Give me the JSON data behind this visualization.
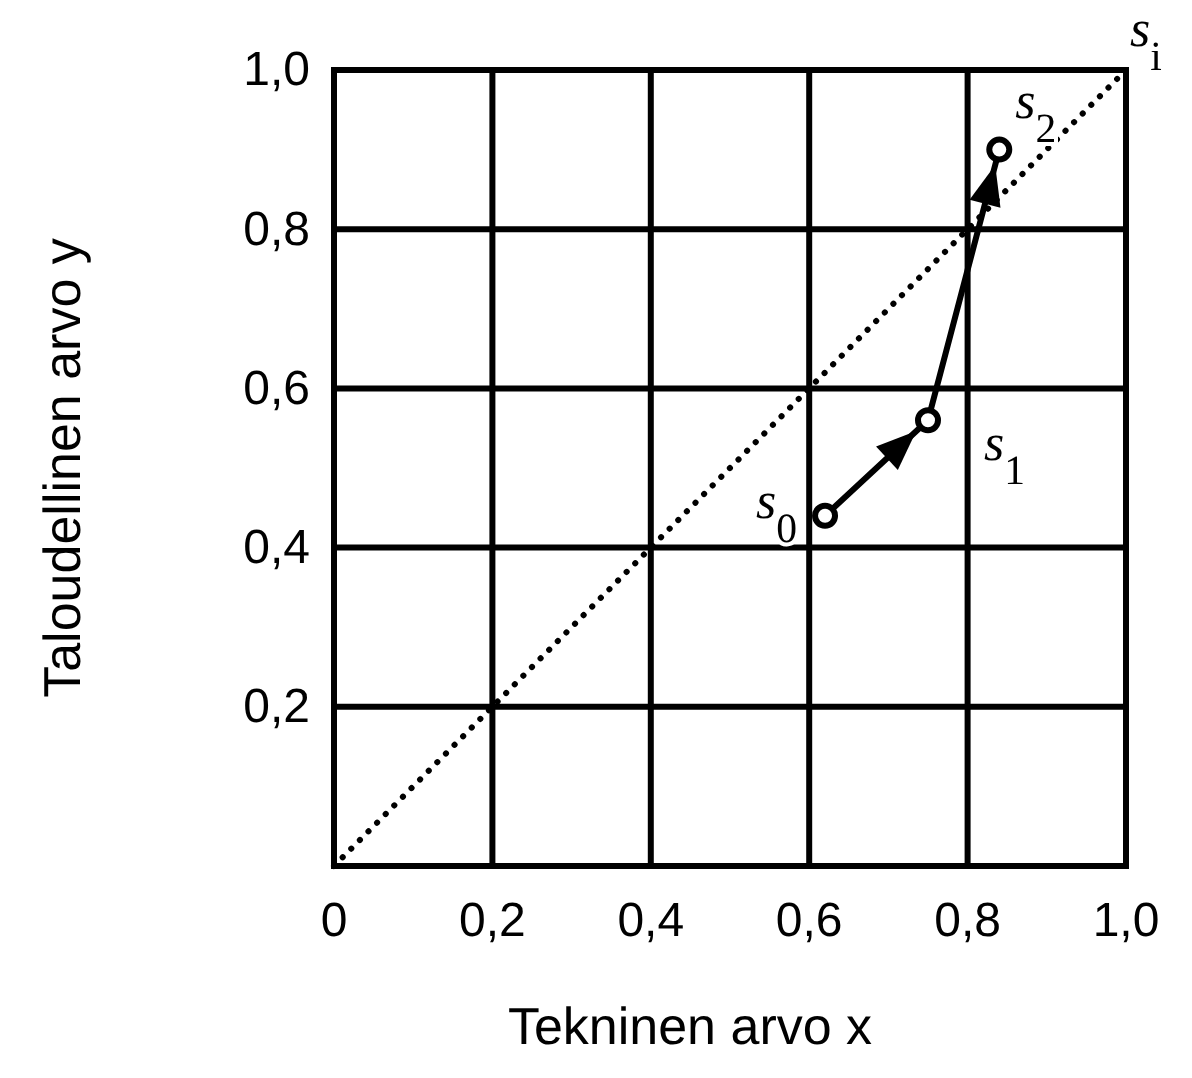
{
  "chart_data": {
    "type": "line",
    "xlabel": "Tekninen arvo x",
    "ylabel": "Taloudellinen arvo y",
    "xlim": [
      0,
      1
    ],
    "ylim": [
      0,
      1
    ],
    "xticks": [
      {
        "value": 0,
        "label": "0"
      },
      {
        "value": 0.2,
        "label": "0,2"
      },
      {
        "value": 0.4,
        "label": "0,4"
      },
      {
        "value": 0.6,
        "label": "0,6"
      },
      {
        "value": 0.8,
        "label": "0,8"
      },
      {
        "value": 1,
        "label": "1,0"
      }
    ],
    "yticks": [
      {
        "value": 0.2,
        "label": "0,2"
      },
      {
        "value": 0.4,
        "label": "0,4"
      },
      {
        "value": 0.6,
        "label": "0,6"
      },
      {
        "value": 0.8,
        "label": "0,8"
      },
      {
        "value": 1,
        "label": "1,0"
      }
    ],
    "grid": true,
    "series": [
      {
        "name": "s$_{i}$",
        "color": "#000000",
        "x": [
          0,
          1
        ],
        "values": [
          0,
          1
        ],
        "line_style": "dotted",
        "marker": "none"
      },
      {
        "color": "#000000",
        "x": [
          0.62,
          0.75,
          0.84
        ],
        "values": [
          0.44,
          0.56,
          0.9
        ],
        "line_style": "solid",
        "marker": "circle"
      }
    ],
    "annotations": [
      {
        "text": "s$_{0}$",
        "x": 0.62,
        "y": 0.44
      },
      {
        "text": "s$_{1}$",
        "x": 0.75,
        "y": 0.56
      },
      {
        "text": "s$_{2}$",
        "x": 0.84,
        "y": 0.9
      }
    ]
  }
}
